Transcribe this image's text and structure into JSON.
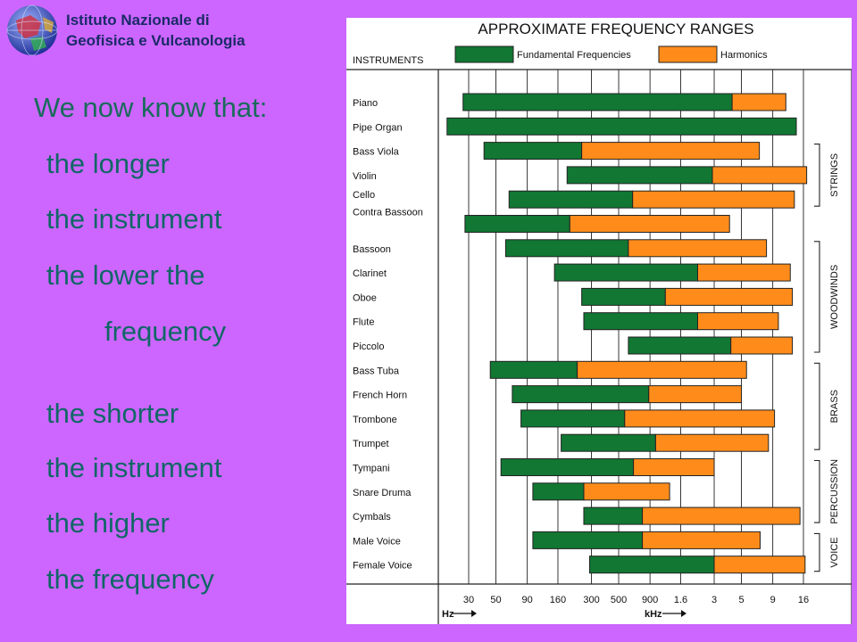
{
  "logo": {
    "line1": "Istituto Nazionale di",
    "line2": "Geofisica e Vulcanologia"
  },
  "slide_text": [
    "We now know that:",
    "the longer",
    "the instrument",
    "the lower the",
    "frequency",
    "the shorter",
    "the instrument",
    "the higher",
    "the frequency"
  ],
  "chart_data": {
    "type": "bar",
    "title": "APPROXIMATE FREQUENCY RANGES",
    "instruments_header": "INSTRUMENTS",
    "legend": [
      {
        "name": "Fundamental Frequencies",
        "color": "#117733"
      },
      {
        "name": "Harmonics",
        "color": "#ff8c1a"
      }
    ],
    "x_scale": "log",
    "x_ticks": [
      "30",
      "50",
      "90",
      "160",
      "300",
      "500",
      "900",
      "1.6",
      "3",
      "5",
      "9",
      "16"
    ],
    "x_tick_values_hz": [
      30,
      50,
      90,
      160,
      300,
      500,
      900,
      1600,
      3000,
      5000,
      9000,
      16000
    ],
    "x_unit_labels": [
      "Hz",
      "kHz"
    ],
    "groups": [
      {
        "name": "STRINGS",
        "from": "Bass Viola",
        "to": "Cello"
      },
      {
        "name": "WOODWINDS",
        "from": "Bassoon",
        "to": "Piccolo"
      },
      {
        "name": "BRASS",
        "from": "Bass Tuba",
        "to": "Trumpet"
      },
      {
        "name": "PERCUSSION",
        "from": "Tympani",
        "to": "Cymbals"
      },
      {
        "name": "VOICE",
        "from": "Male Voice",
        "to": "Female Voice"
      }
    ],
    "categories": [
      "Piano",
      "Pipe Organ",
      "Bass Viola",
      "Violin",
      "Cello",
      "Contra Bassoon",
      "Bassoon",
      "Clarinet",
      "Oboe",
      "Flute",
      "Piccolo",
      "Bass Tuba",
      "French Horn",
      "Trombone",
      "Trumpet",
      "Tympani",
      "Snare Druma",
      "Cymbals",
      "Male Voice",
      "Female Voice"
    ],
    "series": [
      {
        "name": "Fundamental Frequencies",
        "ranges_hz": [
          [
            27,
            4200
          ],
          [
            20,
            14000
          ],
          [
            40,
            250
          ],
          [
            190,
            2900
          ],
          [
            64,
            650
          ],
          [
            28,
            200
          ],
          [
            60,
            600
          ],
          [
            150,
            2200
          ],
          [
            250,
            1200
          ],
          [
            260,
            2200
          ],
          [
            600,
            4100
          ],
          [
            45,
            230
          ],
          [
            68,
            880
          ],
          [
            80,
            560
          ],
          [
            170,
            1000
          ],
          [
            55,
            660
          ],
          [
            100,
            260
          ],
          [
            260,
            780
          ],
          [
            100,
            780
          ],
          [
            290,
            3000
          ]
        ]
      },
      {
        "name": "Harmonics",
        "ranges_hz": [
          [
            4200,
            11500
          ],
          [
            null,
            null
          ],
          [
            250,
            7000
          ],
          [
            2900,
            17000
          ],
          [
            650,
            13500
          ],
          [
            200,
            4000
          ],
          [
            600,
            8000
          ],
          [
            2200,
            12500
          ],
          [
            1200,
            13000
          ],
          [
            2200,
            10000
          ],
          [
            4100,
            13000
          ],
          [
            230,
            5500
          ],
          [
            880,
            5000
          ],
          [
            560,
            9300
          ],
          [
            1000,
            8300
          ],
          [
            660,
            3000
          ],
          [
            260,
            1300
          ],
          [
            780,
            15000
          ],
          [
            780,
            7100
          ],
          [
            3000,
            16500
          ]
        ]
      }
    ]
  }
}
